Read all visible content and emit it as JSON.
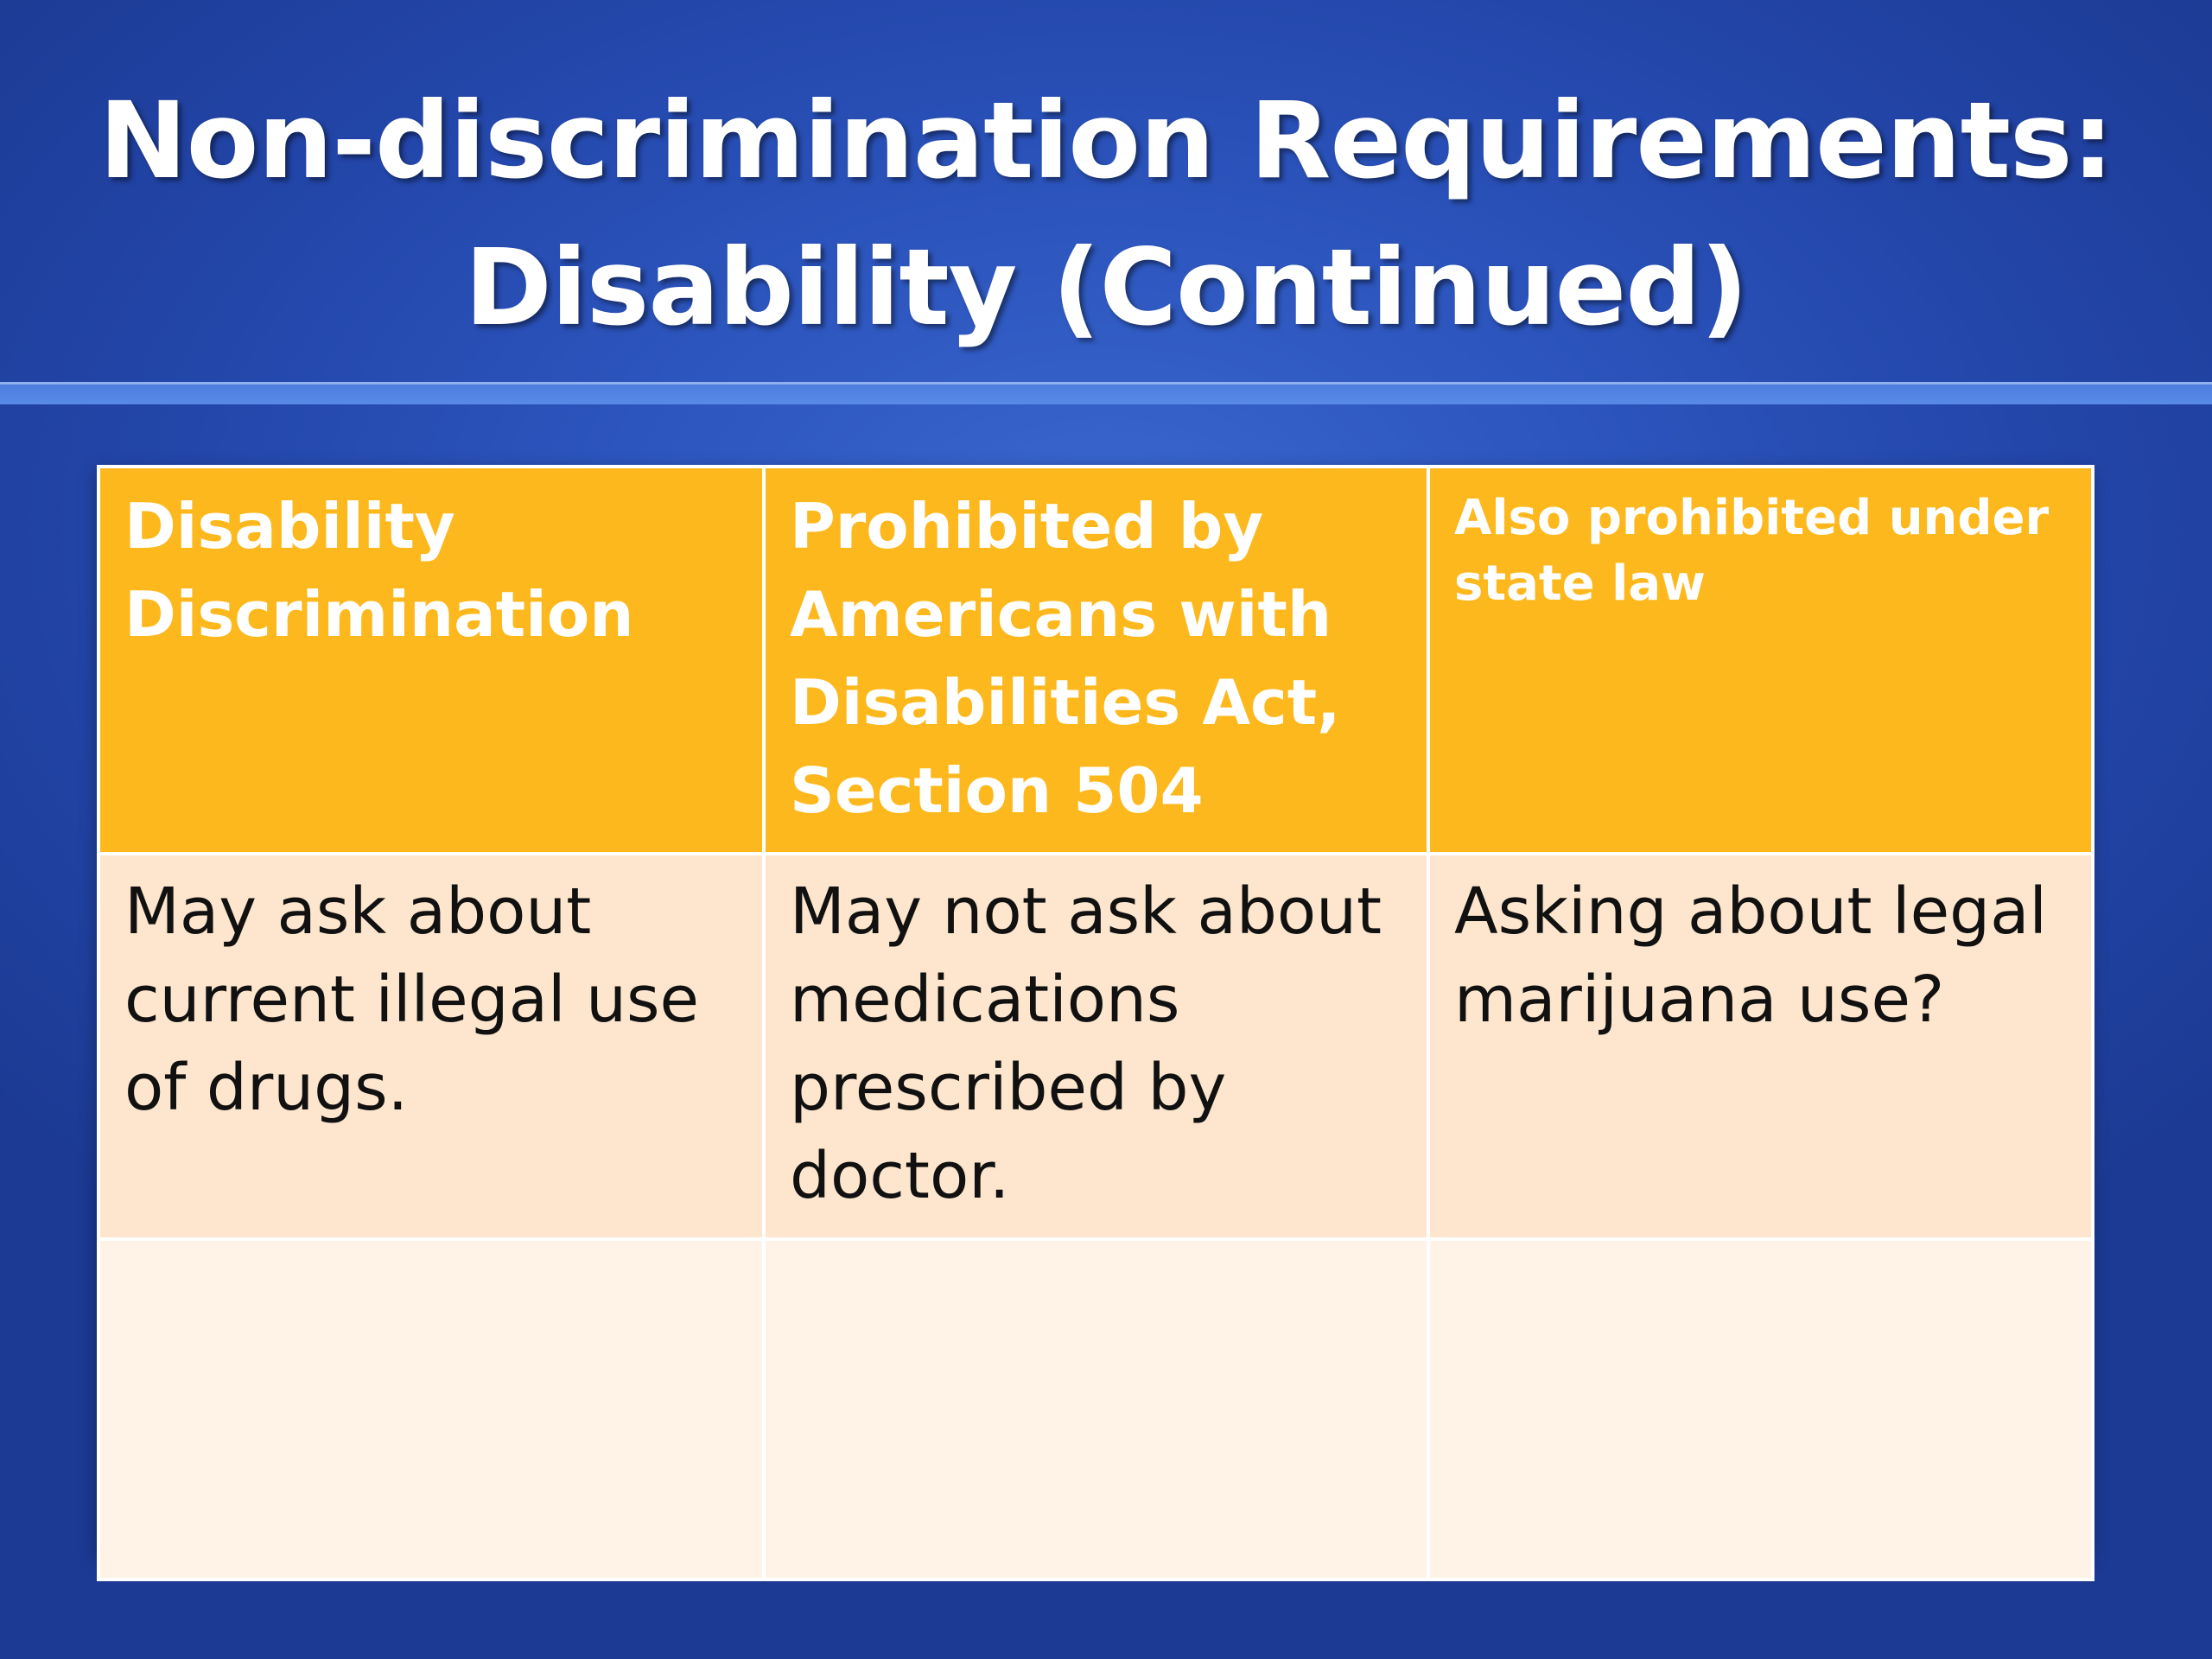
{
  "slide": {
    "title_line1": "Non-discrimination Requirements:",
    "title_line2": "Disability (Continued)"
  },
  "table": {
    "headers": [
      "Disability Discrimination",
      "Prohibited by Americans with Disabilities Act, Section 504",
      "Also prohibited under state law"
    ],
    "rows": [
      [
        "May ask about current illegal use of drugs.",
        "May not ask about medications prescribed by doctor.",
        "Asking about legal marijuana use?"
      ],
      [
        "",
        "",
        ""
      ]
    ]
  },
  "colors": {
    "background": "#2c55bd",
    "header_fill": "#fdb81d",
    "row1_fill": "#fde6cd",
    "row2_fill": "#fef3e6"
  }
}
